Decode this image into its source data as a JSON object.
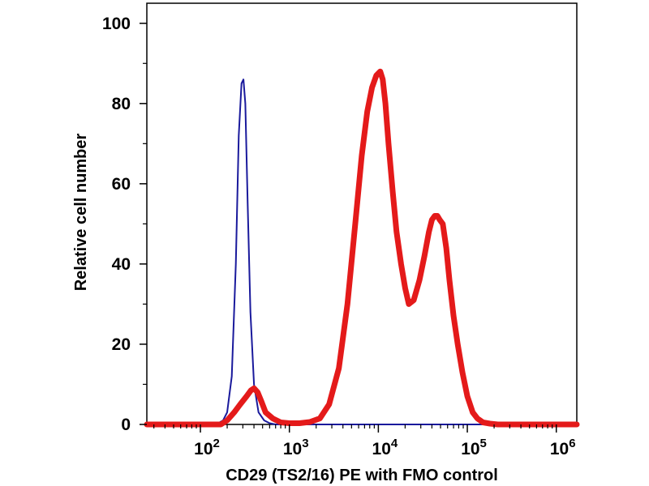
{
  "chart_data": {
    "type": "line",
    "title": "",
    "xlabel": "CD29 (TS2/16) PE with FMO control",
    "ylabel": "Relative cell number",
    "x_scale": "log",
    "xlim": [
      25,
      1700000
    ],
    "ylim": [
      0,
      105
    ],
    "grid": false,
    "legend": "none",
    "y_ticks": [
      {
        "value": 0,
        "label": "0"
      },
      {
        "value": 20,
        "label": "20"
      },
      {
        "value": 40,
        "label": "40"
      },
      {
        "value": 60,
        "label": "60"
      },
      {
        "value": 80,
        "label": "80"
      },
      {
        "value": 100,
        "label": "100"
      }
    ],
    "x_ticks": [
      {
        "value": 100,
        "base": "10",
        "exp": "2"
      },
      {
        "value": 1000,
        "base": "10",
        "exp": "3"
      },
      {
        "value": 10000,
        "base": "10",
        "exp": "4"
      },
      {
        "value": 100000,
        "base": "10",
        "exp": "5"
      },
      {
        "value": 1000000,
        "base": "10",
        "exp": "6"
      }
    ],
    "series": [
      {
        "color": "#1a1a9c",
        "x": [
          25,
          150,
          180,
          200,
          225,
          250,
          270,
          290,
          305,
          320,
          340,
          365,
          400,
          450,
          520,
          600,
          700,
          900,
          1700000
        ],
        "y": [
          0,
          0,
          1,
          3,
          12,
          40,
          72,
          85,
          86,
          80,
          55,
          28,
          10,
          3,
          1,
          0.3,
          0,
          0,
          0
        ]
      },
      {
        "color": "#e41a1a",
        "x": [
          25,
          170,
          200,
          240,
          280,
          330,
          370,
          400,
          440,
          480,
          540,
          650,
          800,
          1000,
          1300,
          1700,
          2200,
          2800,
          3600,
          4500,
          5500,
          6500,
          7500,
          8500,
          9500,
          10500,
          11200,
          12000,
          13000,
          14500,
          16000,
          18000,
          20000,
          22000,
          25000,
          29000,
          33000,
          37000,
          40000,
          43000,
          46000,
          49000,
          53000,
          58000,
          63000,
          70000,
          78000,
          88000,
          100000,
          115000,
          130000,
          150000,
          180000,
          220000,
          300000,
          1700000
        ],
        "y": [
          0,
          0,
          1,
          3,
          5,
          7,
          8.5,
          9,
          8,
          6,
          3,
          1.5,
          0.5,
          0.3,
          0.3,
          0.6,
          1.5,
          5,
          14,
          30,
          50,
          67,
          78,
          84,
          87,
          88,
          86,
          80,
          70,
          58,
          48,
          40,
          34,
          30,
          31,
          36,
          42,
          48,
          51,
          52,
          52,
          51,
          50,
          44,
          36,
          27,
          20,
          13,
          7,
          3,
          1.5,
          0.5,
          0.2,
          0,
          0,
          0
        ]
      }
    ]
  }
}
